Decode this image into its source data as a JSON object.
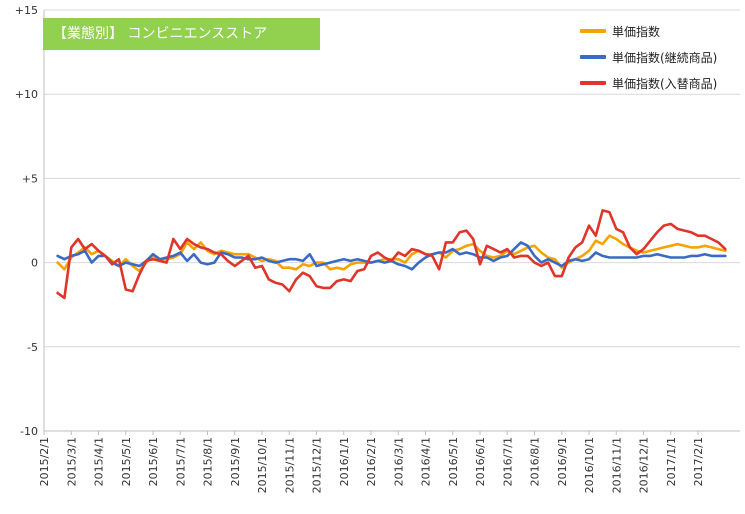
{
  "chart_data": {
    "type": "line",
    "title": "【業態別】 コンビニエンスストア",
    "ylim": [
      -10,
      15
    ],
    "yticks": [
      -10,
      -5,
      0,
      5,
      10,
      15
    ],
    "ytick_labels": [
      "-10",
      "-5",
      "0",
      "+5",
      "+10",
      "+15"
    ],
    "x_labels": [
      "2015/2/1",
      "2015/3/1",
      "2015/4/1",
      "2015/5/1",
      "2015/6/1",
      "2015/7/1",
      "2015/8/1",
      "2015/9/1",
      "2015/10/1",
      "2015/11/1",
      "2015/12/1",
      "2016/1/1",
      "2016/2/1",
      "2016/3/1",
      "2016/4/1",
      "2016/5/1",
      "2016/6/1",
      "2016/7/1",
      "2016/8/1",
      "2016/9/1",
      "2016/10/1",
      "2016/11/1",
      "2016/12/1",
      "2017/1/1",
      "2017/2/1"
    ],
    "points_per_month": 4,
    "legend_position": "top-right",
    "grid": "horizontal",
    "series": [
      {
        "name": "単価指数",
        "color": "#f5a300",
        "values": [
          0.0,
          -0.4,
          0.3,
          0.6,
          0.9,
          0.5,
          0.7,
          0.4,
          0.1,
          -0.2,
          0.2,
          -0.2,
          -0.5,
          0.0,
          0.4,
          0.2,
          0.2,
          0.3,
          0.5,
          1.2,
          0.8,
          1.2,
          0.7,
          0.5,
          0.7,
          0.6,
          0.5,
          0.5,
          0.5,
          0.3,
          0.1,
          0.2,
          0.1,
          -0.3,
          -0.3,
          -0.4,
          -0.1,
          -0.2,
          0.0,
          0.0,
          -0.4,
          -0.3,
          -0.4,
          -0.1,
          0.0,
          0.0,
          0.0,
          0.1,
          0.2,
          0.2,
          0.2,
          0.0,
          0.5,
          0.7,
          0.5,
          0.5,
          0.6,
          0.3,
          0.7,
          0.8,
          1.0,
          1.1,
          0.7,
          0.4,
          0.3,
          0.4,
          0.7,
          0.5,
          0.7,
          0.9,
          1.0,
          0.6,
          0.3,
          0.2,
          -0.3,
          0.0,
          0.2,
          0.4,
          0.7,
          1.3,
          1.1,
          1.6,
          1.4,
          1.1,
          0.9,
          0.7,
          0.6,
          0.7,
          0.8,
          0.9,
          1.0,
          1.1,
          1.0,
          0.9,
          0.9,
          1.0,
          0.9,
          0.8,
          0.7
        ]
      },
      {
        "name": "単価指数(継続商品)",
        "color": "#3a6bc4",
        "values": [
          0.4,
          0.2,
          0.4,
          0.5,
          0.7,
          0.0,
          0.4,
          0.4,
          0.0,
          -0.2,
          0.0,
          -0.1,
          -0.2,
          0.1,
          0.5,
          0.2,
          0.3,
          0.4,
          0.6,
          0.1,
          0.5,
          0.0,
          -0.1,
          0.0,
          0.6,
          0.5,
          0.3,
          0.3,
          0.2,
          0.2,
          0.3,
          0.1,
          0.0,
          0.1,
          0.2,
          0.2,
          0.1,
          0.5,
          -0.2,
          -0.1,
          0.0,
          0.1,
          0.2,
          0.1,
          0.2,
          0.1,
          0.0,
          0.1,
          0.0,
          0.1,
          -0.1,
          -0.2,
          -0.4,
          0.0,
          0.3,
          0.5,
          0.6,
          0.6,
          0.8,
          0.5,
          0.6,
          0.5,
          0.3,
          0.3,
          0.1,
          0.3,
          0.4,
          0.8,
          1.2,
          1.0,
          0.4,
          0.0,
          0.2,
          0.0,
          -0.2,
          0.1,
          0.2,
          0.1,
          0.2,
          0.6,
          0.4,
          0.3,
          0.3,
          0.3,
          0.3,
          0.3,
          0.4,
          0.4,
          0.5,
          0.4,
          0.3,
          0.3,
          0.3,
          0.4,
          0.4,
          0.5,
          0.4,
          0.4,
          0.4
        ]
      },
      {
        "name": "単価指数(入替商品)",
        "color": "#e0352b",
        "values": [
          -1.8,
          -2.1,
          0.9,
          1.4,
          0.8,
          1.1,
          0.7,
          0.4,
          -0.1,
          0.2,
          -1.6,
          -1.7,
          -0.7,
          0.1,
          0.2,
          0.1,
          0.0,
          1.4,
          0.8,
          1.4,
          1.1,
          0.9,
          0.8,
          0.6,
          0.5,
          0.1,
          -0.2,
          0.1,
          0.4,
          -0.3,
          -0.2,
          -1.0,
          -1.2,
          -1.3,
          -1.7,
          -1.0,
          -0.6,
          -0.8,
          -1.4,
          -1.5,
          -1.5,
          -1.1,
          -1.0,
          -1.1,
          -0.5,
          -0.4,
          0.4,
          0.6,
          0.3,
          0.1,
          0.6,
          0.4,
          0.8,
          0.7,
          0.5,
          0.4,
          -0.4,
          1.2,
          1.2,
          1.8,
          1.9,
          1.4,
          -0.1,
          1.0,
          0.8,
          0.6,
          0.8,
          0.3,
          0.4,
          0.4,
          0.0,
          -0.2,
          0.0,
          -0.8,
          -0.8,
          0.3,
          0.9,
          1.2,
          2.2,
          1.6,
          3.1,
          3.0,
          2.0,
          1.8,
          0.9,
          0.5,
          0.8,
          1.3,
          1.8,
          2.2,
          2.3,
          2.0,
          1.9,
          1.8,
          1.6,
          1.6,
          1.4,
          1.2,
          0.8
        ]
      }
    ]
  }
}
